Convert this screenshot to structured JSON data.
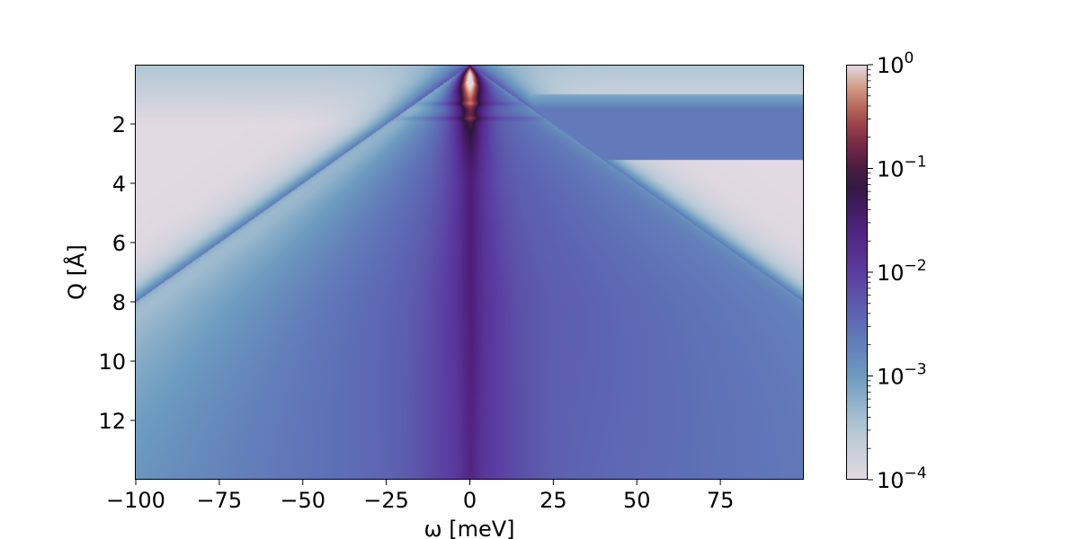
{
  "chart_data": {
    "type": "heatmap",
    "title": "",
    "xlabel": "ω [meV]",
    "ylabel": "Q [Å]",
    "xlim": [
      -100,
      100
    ],
    "ylim": [
      14,
      0
    ],
    "y_inverted": true,
    "x_ticks": [
      -100,
      -75,
      -50,
      -25,
      0,
      25,
      50,
      75
    ],
    "x_tick_labels": [
      "−100",
      "−75",
      "−50",
      "−25",
      "0",
      "25",
      "50",
      "75"
    ],
    "y_ticks": [
      2,
      4,
      6,
      8,
      10,
      12
    ],
    "y_tick_labels": [
      "2",
      "4",
      "6",
      "8",
      "10",
      "12"
    ],
    "colormap": "twilight",
    "color_scale": "log",
    "colorbar": {
      "vmin": 0.0001,
      "vmax": 1,
      "tick_values": [
        0.0001,
        0.001,
        0.01,
        0.1,
        1
      ],
      "tick_bases": [
        "10",
        "10",
        "10",
        "10",
        "10"
      ],
      "tick_exponents": [
        "−4",
        "−3",
        "−2",
        "−1",
        "0"
      ]
    },
    "features": {
      "elastic_line_omega": 0,
      "cone_edge_slope_meV_per_A": 12.5,
      "cone_left_edge_at_Q8": -100,
      "cone_right_edge_at_Q8": 100,
      "band_Q": [
        1.3,
        1.8
      ],
      "peak_intensity": 1,
      "background_intensity": 0.0001,
      "min_intensity_region_Q": 6,
      "min_intensity_value": 0.012
    },
    "grid": false,
    "colors": {
      "low": "#e2d9e2",
      "mid_low": "#6d9bc0",
      "mid": "#5a46a6",
      "dark": "#2e1539",
      "mid_high": "#8e3a47",
      "high": "#e2d9e2"
    }
  }
}
